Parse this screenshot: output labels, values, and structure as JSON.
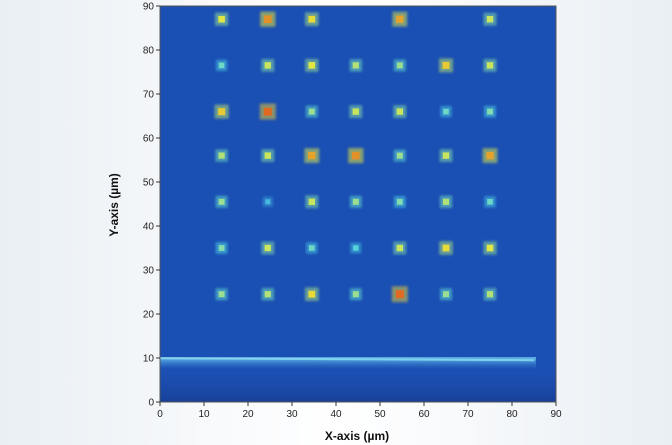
{
  "chart_data": {
    "type": "heatmap",
    "title": "",
    "xlabel": "X-axis (µm)",
    "ylabel": "Y-axis (µm)",
    "xlim": [
      0,
      90
    ],
    "ylim": [
      0,
      90
    ],
    "xticks": [
      0,
      10,
      20,
      30,
      40,
      50,
      60,
      70,
      80,
      90
    ],
    "yticks": [
      0,
      10,
      20,
      30,
      40,
      50,
      60,
      70,
      80,
      90
    ],
    "grid": false,
    "colors": {
      "background": "#1a4fb3",
      "low": "#2a66c8",
      "mid": "#4fd4e8",
      "high": "#e8e83a",
      "peak": "#e06a20",
      "band": "#3a85d4"
    },
    "bright_band_y": 9.5,
    "spots": [
      {
        "x": 14,
        "y": 87,
        "i": 0.65
      },
      {
        "x": 24.5,
        "y": 87,
        "i": 0.9
      },
      {
        "x": 34.5,
        "y": 87,
        "i": 0.7
      },
      {
        "x": 54.5,
        "y": 87,
        "i": 0.85
      },
      {
        "x": 75,
        "y": 87,
        "i": 0.6
      },
      {
        "x": 14,
        "y": 76.5,
        "i": 0.4
      },
      {
        "x": 24.5,
        "y": 76.5,
        "i": 0.6
      },
      {
        "x": 34.5,
        "y": 76.5,
        "i": 0.65
      },
      {
        "x": 44.5,
        "y": 76.5,
        "i": 0.55
      },
      {
        "x": 54.5,
        "y": 76.5,
        "i": 0.5
      },
      {
        "x": 65,
        "y": 76.5,
        "i": 0.75
      },
      {
        "x": 75,
        "y": 76.5,
        "i": 0.6
      },
      {
        "x": 14,
        "y": 66,
        "i": 0.75
      },
      {
        "x": 24.5,
        "y": 66,
        "i": 1.0
      },
      {
        "x": 34.5,
        "y": 66,
        "i": 0.5
      },
      {
        "x": 44.5,
        "y": 66,
        "i": 0.6
      },
      {
        "x": 54.5,
        "y": 66,
        "i": 0.6
      },
      {
        "x": 65,
        "y": 66,
        "i": 0.4
      },
      {
        "x": 75,
        "y": 66,
        "i": 0.45
      },
      {
        "x": 14,
        "y": 56,
        "i": 0.55
      },
      {
        "x": 24.5,
        "y": 56,
        "i": 0.6
      },
      {
        "x": 34.5,
        "y": 56,
        "i": 0.85
      },
      {
        "x": 44.5,
        "y": 56,
        "i": 0.9
      },
      {
        "x": 54.5,
        "y": 56,
        "i": 0.5
      },
      {
        "x": 65,
        "y": 56,
        "i": 0.6
      },
      {
        "x": 75,
        "y": 56,
        "i": 0.85
      },
      {
        "x": 14,
        "y": 45.5,
        "i": 0.5
      },
      {
        "x": 24.5,
        "y": 45.5,
        "i": 0.25
      },
      {
        "x": 34.5,
        "y": 45.5,
        "i": 0.6
      },
      {
        "x": 44.5,
        "y": 45.5,
        "i": 0.5
      },
      {
        "x": 54.5,
        "y": 45.5,
        "i": 0.45
      },
      {
        "x": 65,
        "y": 45.5,
        "i": 0.55
      },
      {
        "x": 75,
        "y": 45.5,
        "i": 0.4
      },
      {
        "x": 14,
        "y": 35,
        "i": 0.45
      },
      {
        "x": 24.5,
        "y": 35,
        "i": 0.6
      },
      {
        "x": 34.5,
        "y": 35,
        "i": 0.4
      },
      {
        "x": 44.5,
        "y": 35,
        "i": 0.35
      },
      {
        "x": 54.5,
        "y": 35,
        "i": 0.6
      },
      {
        "x": 65,
        "y": 35,
        "i": 0.7
      },
      {
        "x": 75,
        "y": 35,
        "i": 0.65
      },
      {
        "x": 14,
        "y": 24.5,
        "i": 0.5
      },
      {
        "x": 24.5,
        "y": 24.5,
        "i": 0.55
      },
      {
        "x": 34.5,
        "y": 24.5,
        "i": 0.7
      },
      {
        "x": 44.5,
        "y": 24.5,
        "i": 0.5
      },
      {
        "x": 54.5,
        "y": 24.5,
        "i": 1.0
      },
      {
        "x": 65,
        "y": 24.5,
        "i": 0.5
      },
      {
        "x": 75,
        "y": 24.5,
        "i": 0.55
      }
    ]
  }
}
